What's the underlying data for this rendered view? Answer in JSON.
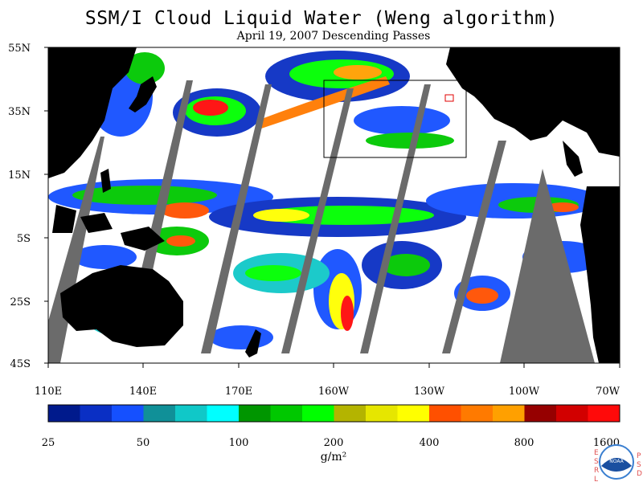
{
  "title": "SSM/I Cloud Liquid Water (Weng algorithm)",
  "subtitle": "April 19, 2007  Descending Passes",
  "lat_labels": [
    "55N",
    "35N",
    "15N",
    "5S",
    "25S",
    "45S"
  ],
  "lon_labels": [
    "110E",
    "140E",
    "170E",
    "160W",
    "130W",
    "100W",
    "70W"
  ],
  "colorbar": {
    "colors": [
      "#001a8c",
      "#0a2fc4",
      "#1550ff",
      "#109098",
      "#10c8c8",
      "#00ffff",
      "#009600",
      "#00c800",
      "#00ff00",
      "#b4b400",
      "#e6e600",
      "#ffff00",
      "#ff5000",
      "#ff7a00",
      "#ffa000",
      "#960000",
      "#d20000",
      "#ff0a0a"
    ],
    "tick_labels": [
      "25",
      "50",
      "100",
      "200",
      "400",
      "800",
      "1600"
    ],
    "unit_label": "g/m²"
  },
  "logo": {
    "left_letters": [
      "E",
      "S",
      "R",
      "L"
    ],
    "right_letters": [
      "P",
      "S",
      "D"
    ],
    "badge": "NOAA"
  },
  "colors": {
    "land": "#000000",
    "no_data": "#6b6b6b",
    "clear": "#ffffff"
  }
}
